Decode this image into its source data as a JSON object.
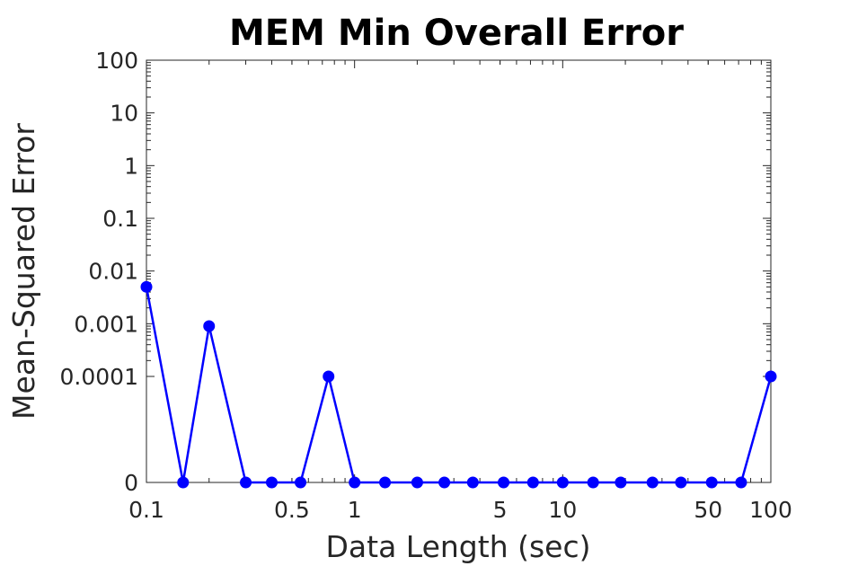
{
  "chart_data": {
    "type": "line",
    "title": "MEM Min Overall Error",
    "xlabel": "Data Length (sec)",
    "ylabel": "Mean-Squared Error",
    "x_scale": "log",
    "y_scale": "log",
    "xlim": [
      0.1,
      100
    ],
    "x_ticks": [
      {
        "value": 0.1,
        "label": "0.1"
      },
      {
        "value": 0.5,
        "label": "0.5"
      },
      {
        "value": 1,
        "label": "1"
      },
      {
        "value": 5,
        "label": "5"
      },
      {
        "value": 10,
        "label": "10"
      },
      {
        "value": 50,
        "label": "50"
      },
      {
        "value": 100,
        "label": "100"
      }
    ],
    "y_ticks": [
      {
        "value": 0,
        "label": "0"
      },
      {
        "value": 0.0001,
        "label": "0.0001"
      },
      {
        "value": 0.001,
        "label": "0.001"
      },
      {
        "value": 0.01,
        "label": "0.01"
      },
      {
        "value": 0.1,
        "label": "0.1"
      },
      {
        "value": 1,
        "label": "1"
      },
      {
        "value": 10,
        "label": "10"
      },
      {
        "value": 100,
        "label": "100"
      }
    ],
    "grid": false,
    "series": [
      {
        "color": "#0000ff",
        "marker": "circle",
        "x": [
          0.1,
          0.15,
          0.2,
          0.3,
          0.4,
          0.55,
          0.75,
          1,
          1.4,
          2,
          2.7,
          3.7,
          5.2,
          7.2,
          10,
          14,
          19,
          27,
          37,
          52,
          72,
          100
        ],
        "y": [
          0.005,
          0,
          0.0009,
          0,
          0,
          0,
          0.0001,
          0,
          0,
          0,
          0,
          0,
          0,
          0,
          0,
          0,
          0,
          0,
          0,
          0,
          0,
          0.0001
        ]
      }
    ]
  }
}
